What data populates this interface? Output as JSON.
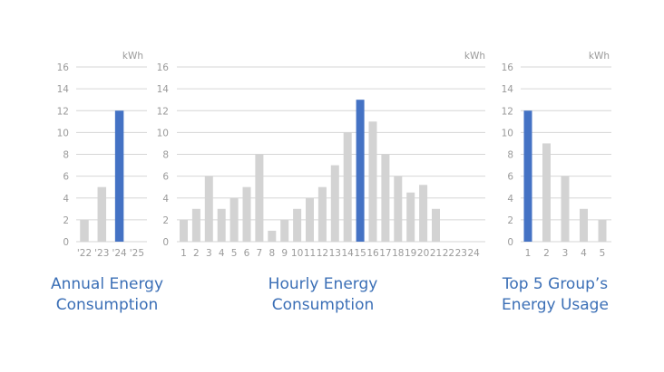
{
  "colors": {
    "highlight": "#4472c4",
    "bar": "#d3d3d3",
    "grid": "#d6d6d6",
    "text": "#9a9a9a",
    "caption": "#3b6fb6"
  },
  "captions": {
    "annual": "Annual Energy\nConsumption",
    "hourly": "Hourly Energy\nConsumption",
    "top5": "Top 5 Group’s\nEnergy Usage"
  },
  "chart_data": [
    {
      "type": "bar",
      "unit": "kWh",
      "ylim": [
        0,
        16
      ],
      "yticks": [
        0,
        2,
        4,
        6,
        8,
        10,
        12,
        14,
        16
      ],
      "grid": true,
      "categories": [
        "'22",
        "'23",
        "'24",
        "'25"
      ],
      "values": [
        2,
        5,
        12,
        null
      ],
      "highlight": "'24"
    },
    {
      "type": "bar",
      "unit": "kWh",
      "ylim": [
        0,
        16
      ],
      "yticks": [
        0,
        2,
        4,
        6,
        8,
        10,
        12,
        14,
        16
      ],
      "grid": true,
      "categories": [
        "1",
        "2",
        "3",
        "4",
        "5",
        "6",
        "7",
        "8",
        "9",
        "10",
        "11",
        "12",
        "13",
        "14",
        "15",
        "16",
        "17",
        "18",
        "19",
        "20",
        "21",
        "22",
        "23",
        "24"
      ],
      "values": [
        2,
        3,
        6,
        3,
        4,
        5,
        8,
        1,
        2,
        3,
        4,
        5,
        7,
        10,
        13,
        11,
        8,
        6,
        4.5,
        5.2,
        3,
        null,
        null,
        null
      ],
      "highlight": "15"
    },
    {
      "type": "bar",
      "unit": "kWh",
      "ylim": [
        0,
        16
      ],
      "yticks": [
        0,
        2,
        4,
        6,
        8,
        10,
        12,
        14,
        16
      ],
      "grid": true,
      "categories": [
        "1",
        "2",
        "3",
        "4",
        "5"
      ],
      "values": [
        12,
        9,
        6,
        3,
        2
      ],
      "highlight": "1"
    }
  ]
}
